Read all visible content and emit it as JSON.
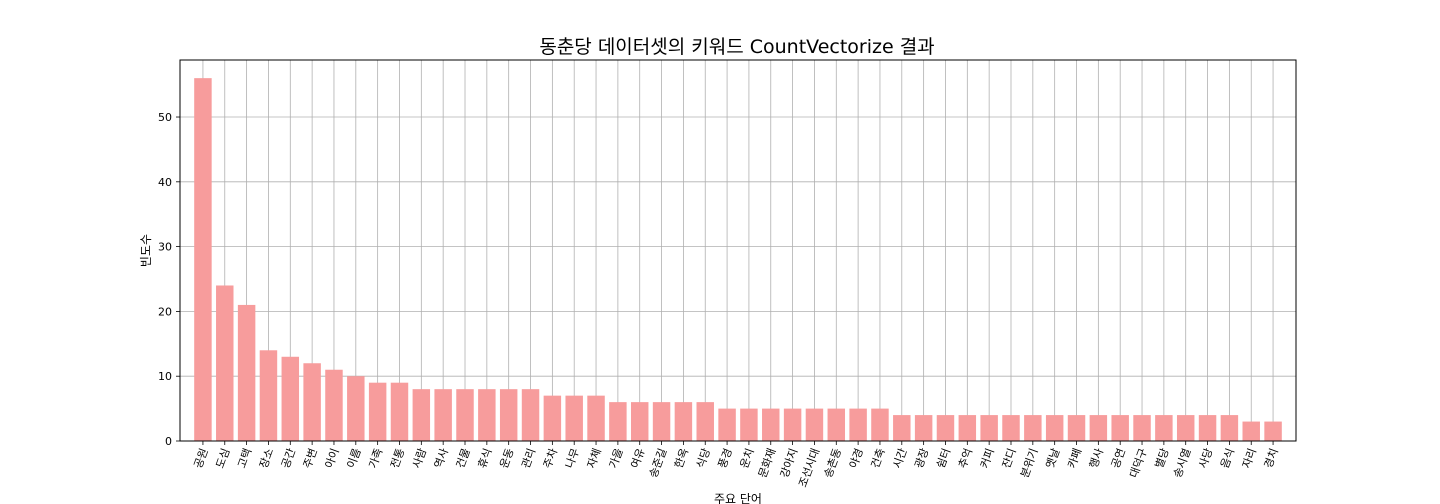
{
  "chart_data": {
    "type": "bar",
    "title": "동춘당 데이터셋의 키워드 CountVectorize 결과",
    "xlabel": "주요 단어",
    "ylabel": "빈도수",
    "ylim": [
      0,
      58.8
    ],
    "yticks": [
      0,
      10,
      20,
      30,
      40,
      50
    ],
    "grid": true,
    "bar_color": "#f79c9c",
    "categories": [
      "공원",
      "도심",
      "고택",
      "장소",
      "공간",
      "주변",
      "아이",
      "이름",
      "가족",
      "전통",
      "사람",
      "역사",
      "건물",
      "휴식",
      "운동",
      "관리",
      "주차",
      "나무",
      "자체",
      "가을",
      "여유",
      "송준길",
      "한옥",
      "식당",
      "풍경",
      "운치",
      "문화재",
      "강아지",
      "조선시대",
      "송촌동",
      "야경",
      "건축",
      "시간",
      "광장",
      "쉼터",
      "추억",
      "커피",
      "잔디",
      "분위기",
      "옛날",
      "카페",
      "행사",
      "공연",
      "대덕구",
      "별당",
      "송시열",
      "사당",
      "음식",
      "자리",
      "경치"
    ],
    "values": [
      56,
      24,
      21,
      14,
      13,
      12,
      11,
      10,
      9,
      9,
      8,
      8,
      8,
      8,
      8,
      8,
      7,
      7,
      7,
      6,
      6,
      6,
      6,
      6,
      5,
      5,
      5,
      5,
      5,
      5,
      5,
      5,
      4,
      4,
      4,
      4,
      4,
      4,
      4,
      4,
      4,
      4,
      4,
      4,
      4,
      4,
      4,
      4,
      3,
      3
    ]
  }
}
